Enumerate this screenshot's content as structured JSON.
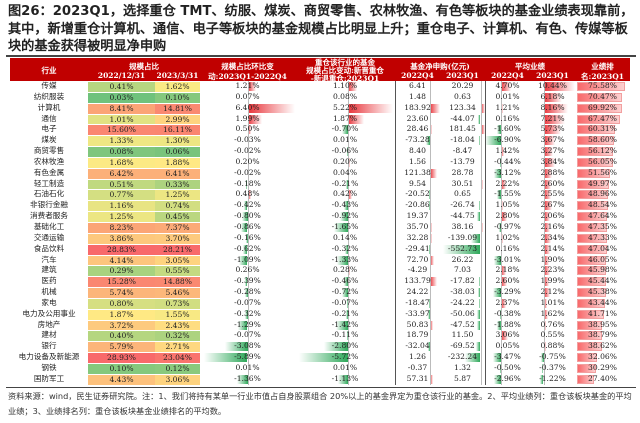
{
  "title": "图26：2023Q1，选择重仓 TMT、纺服、煤炭、商贸零售、农林牧渔、有色等板块的基金业绩表现靠前，其中，新增重仓计算机、通信、电子等板块的基金规模占比明显上升；重仓电子、计算机、有色、传媒等板块的基金获得被明显净申购",
  "header": {
    "industry": "行业",
    "scale_share": "规模占比",
    "d1": "2022/12/31",
    "d2": "2023/3/31",
    "qoq1": "规模占比环比变",
    "qoq2": "动:2023Q1-2022Q4",
    "heavy0": "重仓该行业的基金",
    "heavy1": "规模占比变动:新晋重仓",
    "heavy2": "-新退重仓:2023Q1",
    "net": "基金净申购(亿元)",
    "q4": "2022Q4",
    "q1": "2023Q1",
    "perf": "平均业绩",
    "pq4": "2022Q4",
    "pq1": "2023Q1",
    "rank1": "业绩排",
    "rank2": "名:2023Q1"
  },
  "colors": {
    "header": "#c00000",
    "positive_bar": "#e8343a",
    "negative_bar": "#2ea85a",
    "heat_low": "#63be7b",
    "heat_mid": "#ffeb84",
    "heat_high": "#f8696b"
  },
  "rows": [
    [
      "传媒",
      "0.41%",
      "1.62%",
      "1.21%",
      "1.10%",
      "6.41",
      "20.29",
      "4.70%",
      "10.44%",
      "75.58%"
    ],
    [
      "纺织服装",
      "0.03%",
      "0.10%",
      "0.07%",
      "0.08%",
      "1.48",
      "0.63",
      "0.01%",
      "6.18%",
      "70.47%"
    ],
    [
      "计算机",
      "8.41%",
      "14.81%",
      "6.40%",
      "5.22%",
      "183.92",
      "123.34",
      "1.21%",
      "8.16%",
      "69.92%"
    ],
    [
      "通信",
      "1.01%",
      "2.99%",
      "1.99%",
      "1.87%",
      "23.60",
      "-44.07",
      "0.16%",
      "7.21%",
      "67.47%"
    ],
    [
      "电子",
      "15.60%",
      "16.11%",
      "0.50%",
      "-0.70%",
      "28.46",
      "181.45",
      "-1.60%",
      "5.73%",
      "60.31%"
    ],
    [
      "煤炭",
      "1.33%",
      "1.30%",
      "-0.03%",
      "0.01%",
      "-73.28",
      "-18.04",
      "-6.90%",
      "3.67%",
      "58.60%"
    ],
    [
      "商贸零售",
      "0.08%",
      "0.06%",
      "-0.02%",
      "-0.06%",
      "8.40",
      "-8.47",
      "1.42%",
      "3.27%",
      "56.12%"
    ],
    [
      "农林牧渔",
      "1.68%",
      "1.88%",
      "0.20%",
      "0.20%",
      "1.56",
      "-13.79",
      "-0.44%",
      "3.84%",
      "56.05%"
    ],
    [
      "有色金属",
      "6.42%",
      "6.41%",
      "-0.02%",
      "0.04%",
      "121.38",
      "28.78",
      "-3.12%",
      "2.88%",
      "51.56%"
    ],
    [
      "轻工制造",
      "0.51%",
      "0.33%",
      "-0.18%",
      "-0.21%",
      "9.54",
      "30.51",
      "2.22%",
      "2.60%",
      "49.97%"
    ],
    [
      "石油石化",
      "0.77%",
      "1.25%",
      "0.48%",
      "0.42%",
      "-20.52",
      "0.65",
      "-1.55%",
      "2.55%",
      "48.96%"
    ],
    [
      "非银行金融",
      "1.16%",
      "0.74%",
      "-0.42%",
      "-0.43%",
      "-20.86",
      "-26.74",
      "1.05%",
      "2.67%",
      "48.54%"
    ],
    [
      "消费者服务",
      "1.25%",
      "0.45%",
      "-0.80%",
      "-0.92%",
      "19.37",
      "-44.75",
      "2.80%",
      "2.06%",
      "47.64%"
    ],
    [
      "基础化工",
      "8.23%",
      "7.37%",
      "-0.86%",
      "-1.65%",
      "35.70",
      "38.16",
      "-0.97%",
      "2.16%",
      "47.35%"
    ],
    [
      "交通运输",
      "3.86%",
      "3.70%",
      "-0.16%",
      "0.14%",
      "32.28",
      "-139.09",
      "1.02%",
      "2.34%",
      "47.33%"
    ],
    [
      "食品饮料",
      "28.83%",
      "28.21%",
      "-0.62%",
      "-0.32%",
      "-29.41",
      "-552.73",
      "0.16%",
      "2.14%",
      "47.04%"
    ],
    [
      "汽车",
      "4.14%",
      "3.05%",
      "-1.09%",
      "-1.33%",
      "72.70",
      "26.22",
      "-3.01%",
      "1.90%",
      "46.05%"
    ],
    [
      "建筑",
      "0.29%",
      "0.55%",
      "0.26%",
      "0.28%",
      "-4.29",
      "7.03",
      "2.18%",
      "2.23%",
      "45.98%"
    ],
    [
      "医药",
      "15.28%",
      "14.88%",
      "-0.39%",
      "-0.46%",
      "133.79",
      "-17.82",
      "2.60%",
      "1.99%",
      "45.44%"
    ],
    [
      "机械",
      "5.74%",
      "5.46%",
      "-0.28%",
      "-0.72%",
      "24.22",
      "-38.03",
      "-3.29%",
      "2.12%",
      "45.38%"
    ],
    [
      "家电",
      "0.80%",
      "0.73%",
      "-0.07%",
      "-0.07%",
      "-18.47",
      "-24.22",
      "2.37%",
      "1.01%",
      "43.44%"
    ],
    [
      "电力及公用事业",
      "1.87%",
      "1.55%",
      "-0.32%",
      "-0.21%",
      "-33.97",
      "-50.06",
      "-0.38%",
      "1.62%",
      "41.71%"
    ],
    [
      "房地产",
      "3.72%",
      "2.43%",
      "-1.29%",
      "-1.42%",
      "50.83",
      "-47.52",
      "-1.88%",
      "0.76%",
      "38.95%"
    ],
    [
      "建材",
      "0.40%",
      "0.32%",
      "-0.07%",
      "-0.11%",
      "18.79",
      "11.50",
      "3.06%",
      "0.55%",
      "38.79%"
    ],
    [
      "银行",
      "5.79%",
      "2.71%",
      "-3.08%",
      "-2.80%",
      "-32.04",
      "-69.52",
      "0.05%",
      "0.88%",
      "38.62%"
    ],
    [
      "电力设备及新能源",
      "28.93%",
      "23.04%",
      "-5.89%",
      "-5.72%",
      "1.26",
      "-232.24",
      "-3.47%",
      "-0.75%",
      "32.06%"
    ],
    [
      "钢铁",
      "0.10%",
      "0.12%",
      "0.01%",
      "0.01%",
      "-0.37",
      "1.32",
      "-0.50%",
      "-0.37%",
      "30.29%"
    ],
    [
      "国防军工",
      "4.43%",
      "3.06%",
      "-1.36%",
      "-1.13%",
      "57.31",
      "5.87",
      "-2.96%",
      "-1.22%",
      "27.40%"
    ]
  ],
  "notes": "资料来源：wind，民生证券研究院。注：1、我们将持有某单一行业市值占自身股票组合 20%以上的基金界定为重仓该行业的基金。2、平均业绩列：重仓该板块基金的平均业绩；3、业绩排名列：重仓该板块基金业绩排名的平均数。"
}
